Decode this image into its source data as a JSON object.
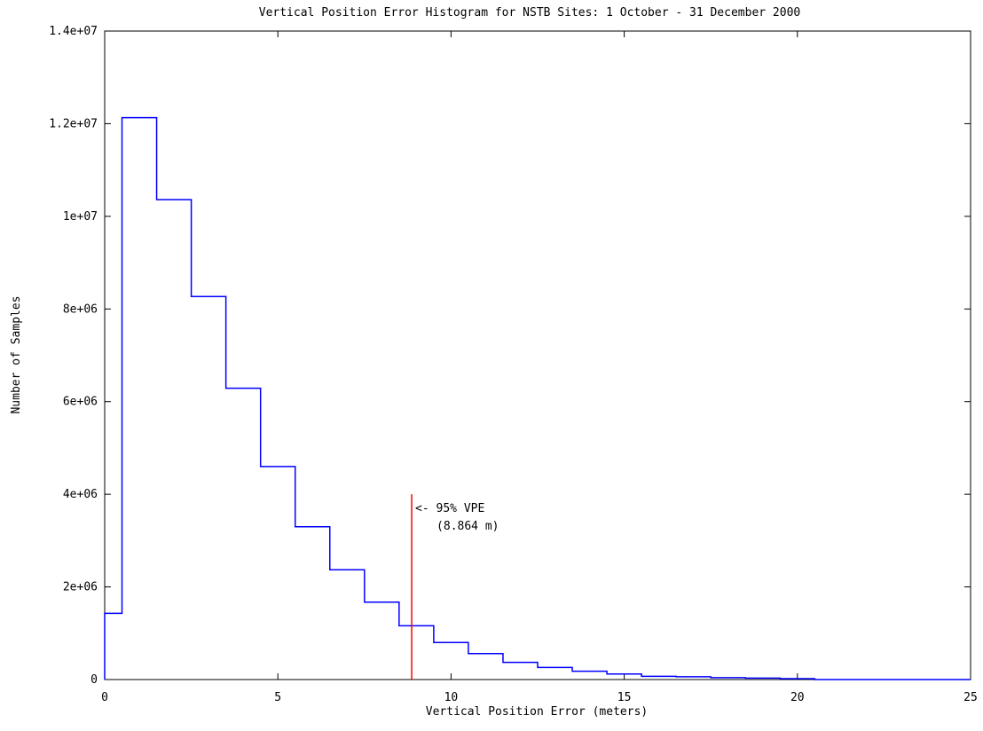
{
  "chart_data": {
    "type": "bar",
    "title": "Vertical Position Error Histogram for NSTB Sites: 1 October - 31 December 2000",
    "xlabel": "Vertical Position Error (meters)",
    "ylabel": "Number of Samples",
    "xlim": [
      0,
      25
    ],
    "ylim": [
      0,
      14000000
    ],
    "x_ticks": [
      0,
      5,
      10,
      15,
      20,
      25
    ],
    "x_tick_labels": [
      "0",
      "5",
      "10",
      "15",
      "20",
      "25"
    ],
    "y_ticks": [
      0,
      2000000,
      4000000,
      6000000,
      8000000,
      10000000,
      12000000,
      14000000
    ],
    "y_tick_labels": [
      "0",
      "2e+06",
      "4e+06",
      "6e+06",
      "8e+06",
      "1e+07",
      "1.2e+07",
      "1.4e+07"
    ],
    "grid": false,
    "series": [
      {
        "style": "step",
        "color": "#0000ff",
        "bins": [
          {
            "x0": 0,
            "x1": 0.5,
            "value": 1430000
          },
          {
            "x0": 0.5,
            "x1": 1.5,
            "value": 12130000
          },
          {
            "x0": 1.5,
            "x1": 2.5,
            "value": 10360000
          },
          {
            "x0": 2.5,
            "x1": 3.5,
            "value": 8270000
          },
          {
            "x0": 3.5,
            "x1": 4.5,
            "value": 6290000
          },
          {
            "x0": 4.5,
            "x1": 5.5,
            "value": 4600000
          },
          {
            "x0": 5.5,
            "x1": 6.5,
            "value": 3300000
          },
          {
            "x0": 6.5,
            "x1": 7.5,
            "value": 2370000
          },
          {
            "x0": 7.5,
            "x1": 8.5,
            "value": 1670000
          },
          {
            "x0": 8.5,
            "x1": 9.5,
            "value": 1160000
          },
          {
            "x0": 9.5,
            "x1": 10.5,
            "value": 800000
          },
          {
            "x0": 10.5,
            "x1": 11.5,
            "value": 560000
          },
          {
            "x0": 11.5,
            "x1": 12.5,
            "value": 370000
          },
          {
            "x0": 12.5,
            "x1": 13.5,
            "value": 260000
          },
          {
            "x0": 13.5,
            "x1": 14.5,
            "value": 180000
          },
          {
            "x0": 14.5,
            "x1": 15.5,
            "value": 120000
          },
          {
            "x0": 15.5,
            "x1": 16.5,
            "value": 70000
          },
          {
            "x0": 16.5,
            "x1": 17.5,
            "value": 60000
          },
          {
            "x0": 17.5,
            "x1": 18.5,
            "value": 40000
          },
          {
            "x0": 18.5,
            "x1": 19.5,
            "value": 30000
          },
          {
            "x0": 19.5,
            "x1": 20.5,
            "value": 20000
          },
          {
            "x0": 20.5,
            "x1": 25,
            "value": 0
          }
        ]
      }
    ],
    "marker": {
      "x": 8.864,
      "y_top": 4000000,
      "color": "#ff0000",
      "label_line1": "<- 95% VPE",
      "label_line2": "(8.864 m)"
    }
  }
}
